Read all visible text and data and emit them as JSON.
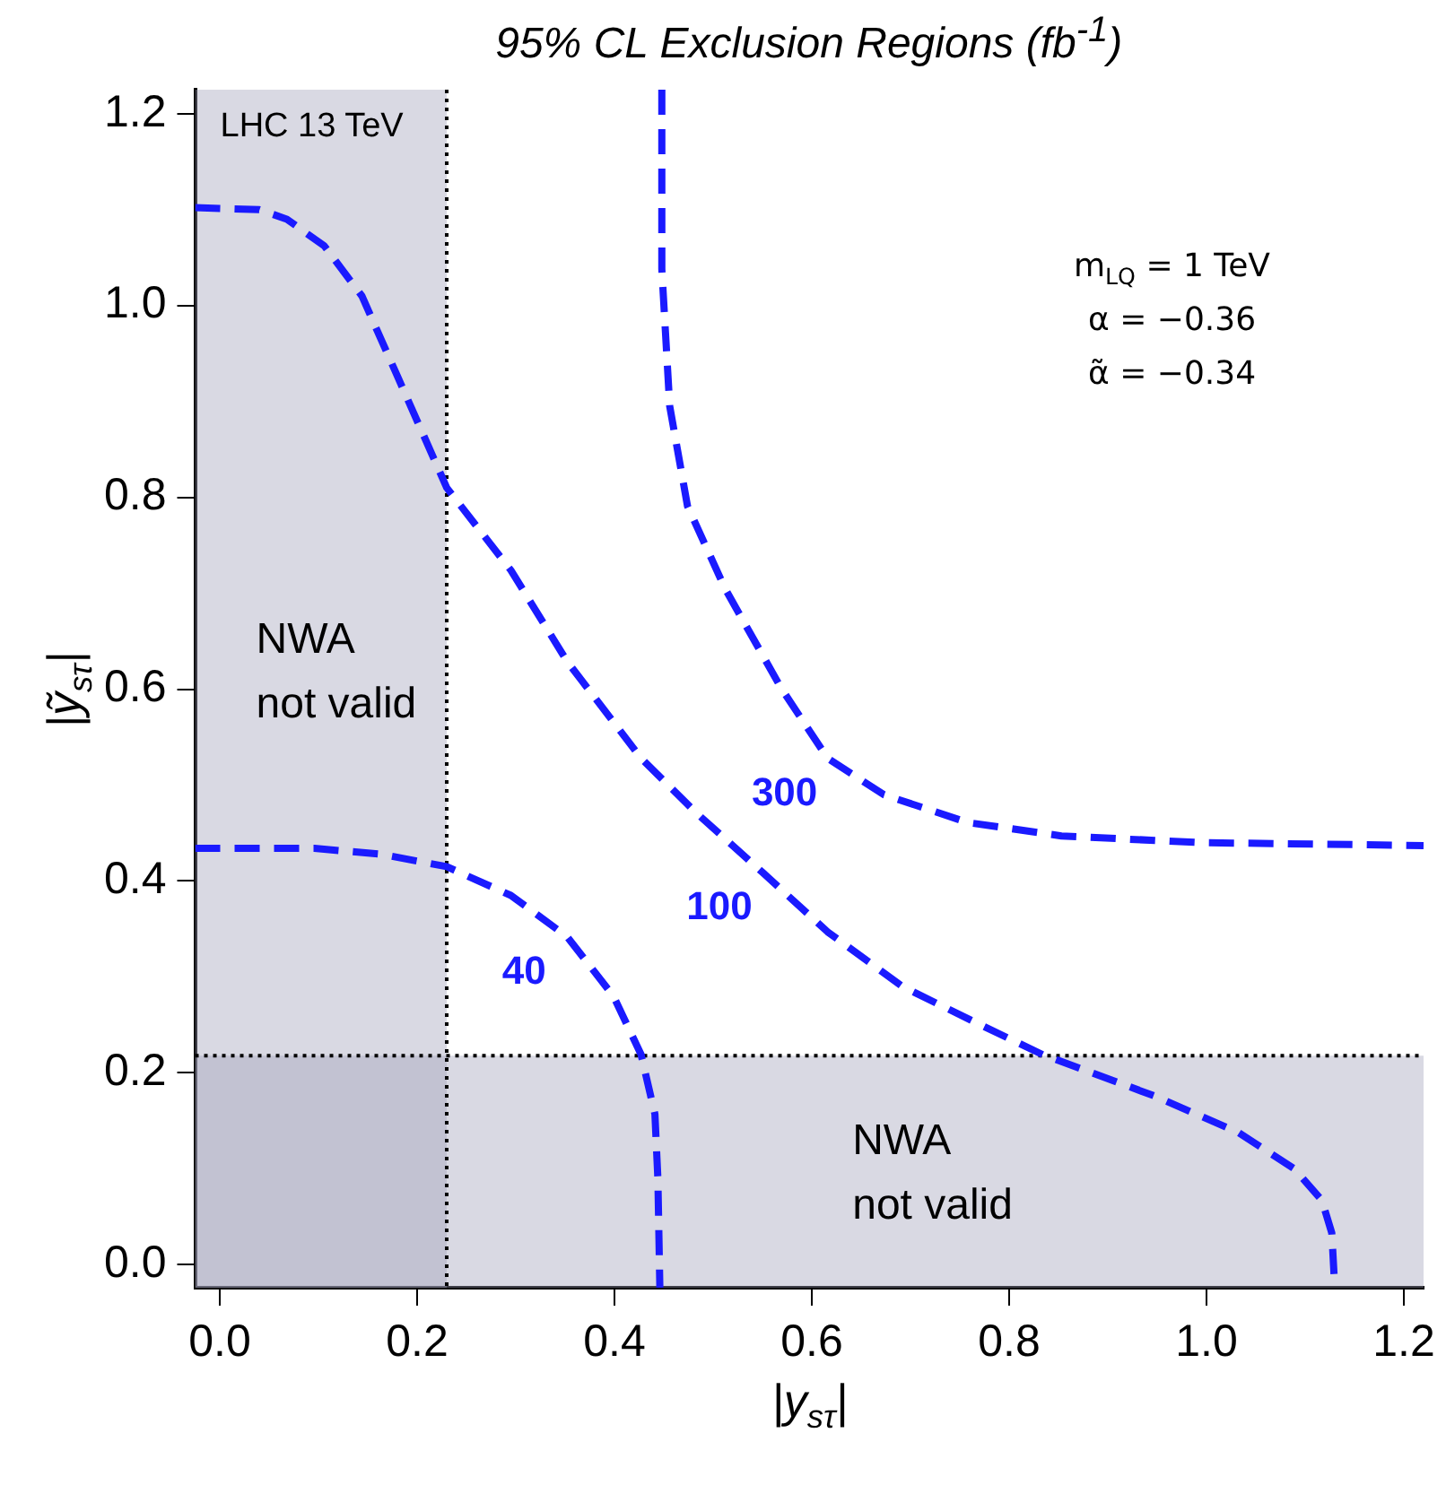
{
  "chart_data": {
    "type": "line",
    "title": "95% CL Exclusion Regions (fb$^{-1}$)",
    "xlabel": "|y$_{sτ}$|",
    "ylabel": "|ỹ$_{sτ}$|",
    "xlim": [
      -0.025,
      1.22
    ],
    "ylim": [
      -0.024,
      1.225
    ],
    "xticks": [
      {
        "value": 0,
        "label": "0.0"
      },
      {
        "value": 0.2,
        "label": "0.2"
      },
      {
        "value": 0.4,
        "label": "0.4"
      },
      {
        "value": 0.6,
        "label": "0.6"
      },
      {
        "value": 0.8,
        "label": "0.8"
      },
      {
        "value": 1,
        "label": "1.0"
      },
      {
        "value": 1.2,
        "label": "1.2"
      }
    ],
    "yticks": [
      {
        "value": 0,
        "label": "0.0"
      },
      {
        "value": 0.2,
        "label": "0.2"
      },
      {
        "value": 0.4,
        "label": "0.4"
      },
      {
        "value": 0.6,
        "label": "0.6"
      },
      {
        "value": 0.8,
        "label": "0.8"
      },
      {
        "value": 1,
        "label": "1.0"
      },
      {
        "value": 1.2,
        "label": "1.2"
      }
    ],
    "grid": false,
    "legend": false,
    "marker": "none",
    "line_style": "dashed",
    "series": [
      {
        "name": "300",
        "color": "#1a1aff",
        "x": [
          0.448,
          0.448,
          0.456,
          0.474,
          0.512,
          0.569,
          0.616,
          0.673,
          0.758,
          0.853,
          0.994,
          1.22
        ],
        "values": [
          1.225,
          1.038,
          0.895,
          0.791,
          0.705,
          0.601,
          0.528,
          0.49,
          0.461,
          0.447,
          0.44,
          0.437
        ]
      },
      {
        "name": "100",
        "color": "#1a1aff",
        "x": [
          -0.025,
          0.04,
          0.068,
          0.106,
          0.144,
          0.181,
          0.23,
          0.295,
          0.352,
          0.427,
          0.484,
          0.55,
          0.616,
          0.692,
          0.767,
          0.834,
          0.947,
          1.032,
          1.089,
          1.117,
          1.127,
          1.13
        ],
        "values": [
          1.102,
          1.1,
          1.09,
          1.062,
          1.01,
          0.924,
          0.81,
          0.724,
          0.629,
          0.528,
          0.47,
          0.409,
          0.347,
          0.29,
          0.252,
          0.219,
          0.176,
          0.138,
          0.1,
          0.067,
          0.033,
          -0.024
        ]
      },
      {
        "name": "40",
        "color": "#1a1aff",
        "x": [
          -0.025,
          0.096,
          0.163,
          0.23,
          0.295,
          0.352,
          0.399,
          0.427,
          0.441,
          0.444,
          0.446
        ],
        "values": [
          0.434,
          0.434,
          0.428,
          0.415,
          0.385,
          0.342,
          0.28,
          0.219,
          0.157,
          0.09,
          -0.024
        ]
      }
    ],
    "bands": [
      {
        "axis": "x",
        "from": -0.025,
        "to": 0.23,
        "label": "NWA not valid",
        "color": "#a0a0b8"
      },
      {
        "axis": "y",
        "from": -0.024,
        "to": 0.218,
        "label": "NWA not valid",
        "color": "#a0a0b8"
      }
    ],
    "ref_lines": [
      {
        "axis": "x",
        "value": 0.23,
        "line_style": "dotted",
        "color": "#000000"
      },
      {
        "axis": "y",
        "value": 0.218,
        "line_style": "dotted",
        "color": "#000000"
      }
    ],
    "annotations": [
      "LHC 13 TeV",
      "m$_{LQ}$ = 1 TeV",
      "α = −0.36",
      "α̃ = −0.34"
    ]
  }
}
